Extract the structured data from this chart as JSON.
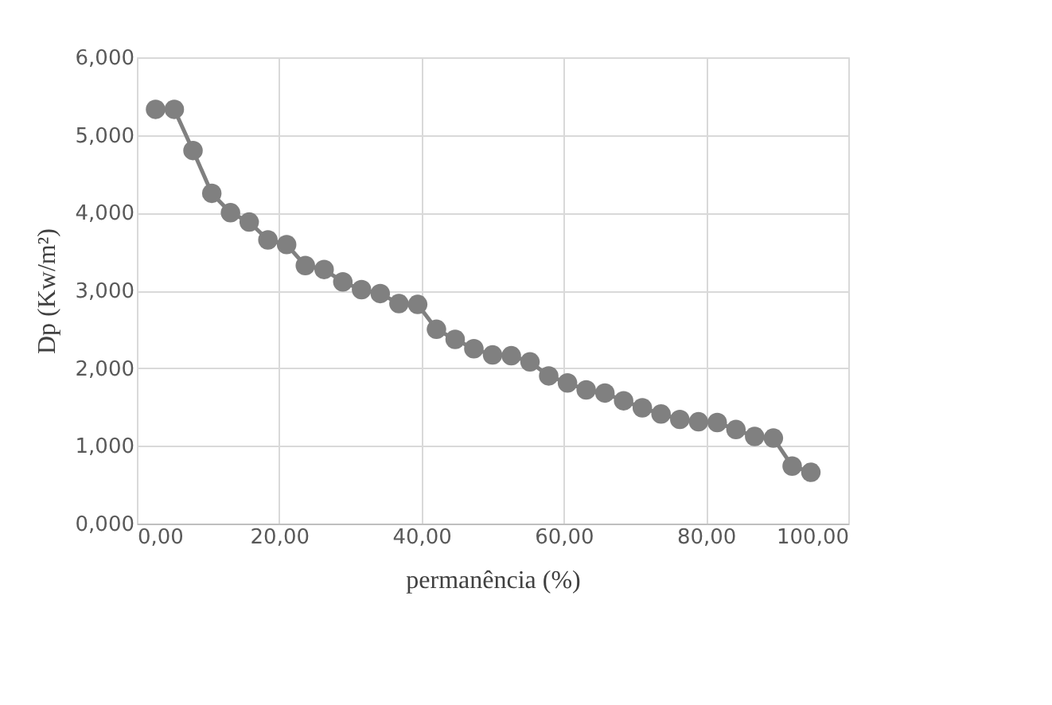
{
  "chart_data": {
    "type": "line",
    "xlabel": "permanência (%)",
    "ylabel": "Dp (Kw/m²)",
    "x": [
      2.63,
      5.26,
      7.89,
      10.53,
      13.16,
      15.79,
      18.42,
      21.05,
      23.68,
      26.32,
      28.95,
      31.58,
      34.21,
      36.84,
      39.47,
      42.11,
      44.74,
      47.37,
      50.0,
      52.63,
      55.26,
      57.89,
      60.53,
      63.16,
      65.79,
      68.42,
      71.05,
      73.68,
      76.32,
      78.95,
      81.58,
      84.21,
      86.84,
      89.47,
      92.11,
      94.74
    ],
    "series": [
      {
        "color": "#808080",
        "values": [
          5.33,
          5.33,
          4.8,
          4.25,
          4.0,
          3.88,
          3.65,
          3.59,
          3.32,
          3.27,
          3.11,
          3.01,
          2.96,
          2.83,
          2.82,
          2.5,
          2.37,
          2.25,
          2.17,
          2.16,
          2.08,
          1.9,
          1.81,
          1.72,
          1.68,
          1.58,
          1.49,
          1.41,
          1.34,
          1.31,
          1.3,
          1.21,
          1.12,
          1.1,
          0.74,
          0.66
        ]
      }
    ],
    "xlim": [
      0,
      100
    ],
    "xticks": [
      {
        "value": 0,
        "label": "0,00"
      },
      {
        "value": 20,
        "label": "20,00"
      },
      {
        "value": 40,
        "label": "40,00"
      },
      {
        "value": 60,
        "label": "60,00"
      },
      {
        "value": 80,
        "label": "80,00"
      },
      {
        "value": 100,
        "label": "100,00"
      }
    ],
    "ylim": [
      0,
      6
    ],
    "yticks": [
      {
        "value": 0,
        "label": "0,000"
      },
      {
        "value": 1,
        "label": "1,000"
      },
      {
        "value": 2,
        "label": "2,000"
      },
      {
        "value": 3,
        "label": "3,000"
      },
      {
        "value": 4,
        "label": "4,000"
      },
      {
        "value": 5,
        "label": "5,000"
      },
      {
        "value": 6,
        "label": "6,000"
      }
    ],
    "grid": true,
    "marker": "circle",
    "line_style": "solid"
  }
}
